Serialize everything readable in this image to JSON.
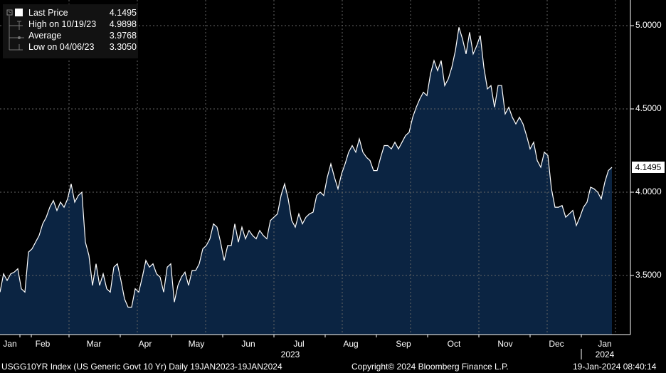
{
  "legend": {
    "last_price_label": "Last Price",
    "last_price_value": "4.1495",
    "high_label": "High on 10/19/23",
    "high_value": "4.9898",
    "average_label": "Average",
    "average_value": "3.9768",
    "low_label": "Low on 04/06/23",
    "low_value": "3.3050"
  },
  "footer": {
    "security": "USGG10YR Index (US Generic Govt 10 Yr)  Daily 19JAN2023-19JAN2024",
    "copyright": "Copyright© 2024 Bloomberg Finance L.P.",
    "timestamp": "19-Jan-2024 08:40:14"
  },
  "colors": {
    "fill": "#0b2442",
    "line": "#ffffff",
    "background": "#000000"
  },
  "chart_data": {
    "type": "area",
    "title": "USGG10YR Index",
    "y_ticks": [
      "5.0000",
      "4.5000",
      "4.0000",
      "3.5000"
    ],
    "y_tick_values": [
      5.0,
      4.5,
      4.0,
      3.5
    ],
    "ylim": [
      3.15,
      5.15
    ],
    "last_value_label": "4.1495",
    "x_ticks": [
      "Jan",
      "Feb",
      "Mar",
      "Apr",
      "May",
      "Jun",
      "Jul",
      "Aug",
      "Sep",
      "Oct",
      "Nov",
      "Dec",
      "Jan"
    ],
    "year_labels": [
      "2023",
      "2024"
    ],
    "grid": true,
    "values": [
      3.4,
      3.51,
      3.47,
      3.51,
      3.52,
      3.54,
      3.42,
      3.4,
      3.64,
      3.66,
      3.7,
      3.74,
      3.81,
      3.85,
      3.91,
      3.95,
      3.89,
      3.94,
      3.91,
      3.96,
      4.05,
      3.94,
      3.98,
      4.0,
      3.7,
      3.62,
      3.44,
      3.57,
      3.44,
      3.51,
      3.42,
      3.4,
      3.55,
      3.57,
      3.47,
      3.36,
      3.31,
      3.31,
      3.42,
      3.4,
      3.49,
      3.59,
      3.55,
      3.57,
      3.51,
      3.49,
      3.4,
      3.55,
      3.57,
      3.34,
      3.44,
      3.49,
      3.52,
      3.44,
      3.53,
      3.53,
      3.57,
      3.66,
      3.68,
      3.72,
      3.81,
      3.79,
      3.7,
      3.59,
      3.68,
      3.68,
      3.81,
      3.7,
      3.79,
      3.72,
      3.77,
      3.74,
      3.72,
      3.77,
      3.74,
      3.72,
      3.83,
      3.85,
      3.87,
      3.98,
      4.05,
      3.96,
      3.83,
      3.79,
      3.87,
      3.81,
      3.85,
      3.87,
      3.88,
      3.98,
      4.0,
      3.98,
      4.09,
      4.17,
      4.09,
      4.02,
      4.11,
      4.17,
      4.24,
      4.28,
      4.24,
      4.32,
      4.24,
      4.21,
      4.19,
      4.13,
      4.13,
      4.21,
      4.28,
      4.28,
      4.26,
      4.3,
      4.26,
      4.3,
      4.34,
      4.36,
      4.45,
      4.51,
      4.56,
      4.6,
      4.58,
      4.71,
      4.79,
      4.73,
      4.79,
      4.64,
      4.68,
      4.75,
      4.85,
      4.99,
      4.92,
      4.83,
      4.96,
      4.83,
      4.88,
      4.94,
      4.75,
      4.62,
      4.64,
      4.51,
      4.64,
      4.64,
      4.47,
      4.51,
      4.45,
      4.41,
      4.45,
      4.41,
      4.34,
      4.26,
      4.3,
      4.19,
      4.15,
      4.24,
      4.22,
      4.02,
      3.91,
      3.91,
      3.92,
      3.85,
      3.87,
      3.89,
      3.8,
      3.85,
      3.91,
      3.94,
      4.03,
      4.02,
      4.0,
      3.96,
      4.06,
      4.13,
      4.1495
    ]
  }
}
